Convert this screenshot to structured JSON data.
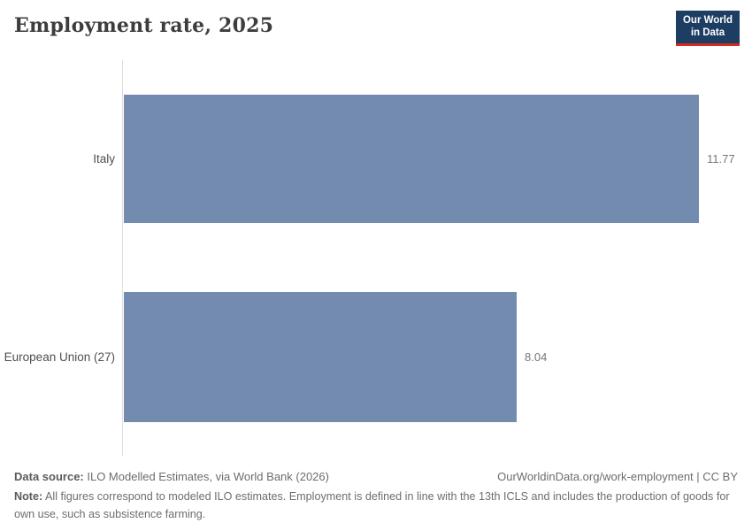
{
  "header": {
    "title": "Employment rate, 2025",
    "logo": {
      "line1": "Our World",
      "line2": "in Data"
    }
  },
  "chart_data": {
    "type": "bar",
    "orientation": "horizontal",
    "title": "Employment rate, 2025",
    "categories": [
      "Italy",
      "European Union (27)"
    ],
    "values": [
      11.77,
      8.04
    ],
    "value_labels": [
      "11.77",
      "8.04"
    ],
    "xlim": [
      0,
      11.77
    ],
    "bar_color": "#748bb0",
    "grid": false,
    "legend": "none"
  },
  "footer": {
    "datasource_label": "Data source:",
    "datasource_text": " ILO Modelled Estimates, via World Bank (2026)",
    "link_text": "OurWorldinData.org/work-employment | CC BY",
    "note_label": "Note:",
    "note_text": " All figures correspond to modeled ILO estimates. Employment is defined in line with the 13th ICLS and includes the production of goods for own use, such as subsistence farming."
  },
  "colors": {
    "bar": "#748bb0",
    "logo_navy": "#1d3d63",
    "logo_red": "#d42b21",
    "axis_line": "#dedede"
  }
}
